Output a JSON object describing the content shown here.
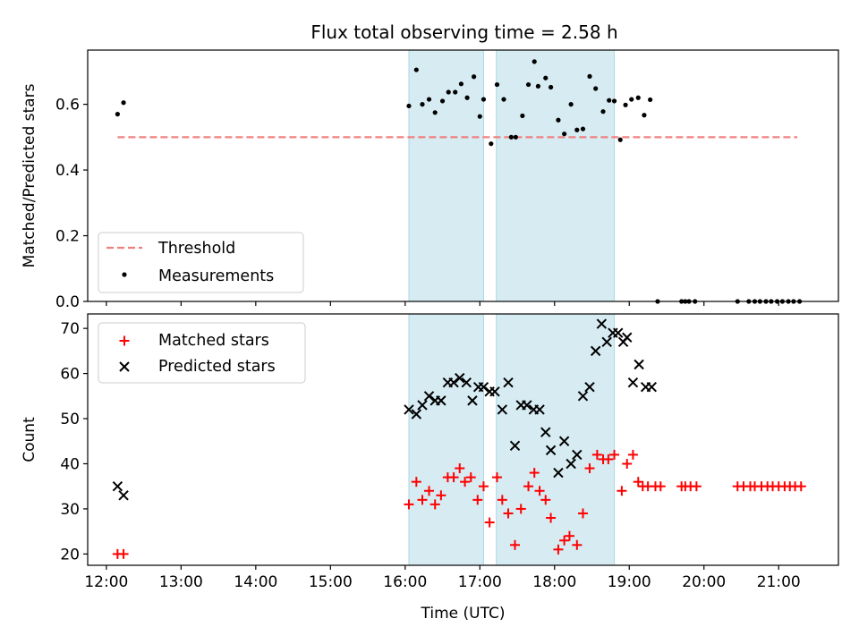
{
  "chart_data": [
    {
      "panel": "top",
      "type": "scatter",
      "title": "Flux total observing time = 2.58 h",
      "xlabel": "",
      "ylabel": "Matched/Predicted stars",
      "xlim": [
        11.75,
        21.8
      ],
      "ylim": [
        0,
        0.765
      ],
      "yticks": [
        0.0,
        0.2,
        0.4,
        0.6
      ],
      "ytick_labels": [
        "0.0",
        "0.2",
        "0.4",
        "0.6"
      ],
      "legend": "bottom-left",
      "shaded_regions": [
        [
          16.05,
          17.05
        ],
        [
          17.22,
          18.8
        ]
      ],
      "threshold": {
        "name": "Threshold",
        "value": 0.5,
        "x_range": [
          12.15,
          21.25
        ],
        "color": "#f08080",
        "style": "dashed"
      },
      "series": [
        {
          "name": "Measurements",
          "color": "#000000",
          "marker": "dot",
          "x": [
            12.15,
            12.23,
            16.05,
            16.15,
            16.23,
            16.32,
            16.4,
            16.5,
            16.58,
            16.67,
            16.75,
            16.83,
            16.92,
            17.0,
            17.05,
            17.15,
            17.23,
            17.32,
            17.42,
            17.48,
            17.57,
            17.65,
            17.73,
            17.78,
            17.88,
            17.95,
            18.05,
            18.13,
            18.22,
            18.3,
            18.38,
            18.47,
            18.55,
            18.65,
            18.73,
            18.8,
            18.88,
            18.95,
            19.03,
            19.12,
            19.2,
            19.28,
            19.38,
            19.7,
            19.75,
            19.8,
            19.88,
            20.45,
            20.6,
            20.68,
            20.75,
            20.83,
            20.9,
            20.98,
            21.05,
            21.13,
            21.2,
            21.28
          ],
          "y": [
            0.57,
            0.605,
            0.595,
            0.705,
            0.6,
            0.615,
            0.575,
            0.61,
            0.637,
            0.637,
            0.662,
            0.62,
            0.684,
            0.563,
            0.615,
            0.48,
            0.66,
            0.615,
            0.5,
            0.5,
            0.565,
            0.66,
            0.73,
            0.655,
            0.68,
            0.652,
            0.552,
            0.51,
            0.6,
            0.522,
            0.525,
            0.685,
            0.648,
            0.578,
            0.612,
            0.61,
            0.492,
            0.598,
            0.615,
            0.62,
            0.567,
            0.614,
            0.0,
            0.0,
            0.0,
            0.0,
            0.0,
            0.0,
            0.0,
            0.0,
            0.0,
            0.0,
            0.0,
            0.0,
            0.0,
            0.0,
            0.0,
            0.0
          ]
        }
      ]
    },
    {
      "panel": "bottom",
      "type": "scatter",
      "title": "",
      "xlabel": "Time (UTC)",
      "ylabel": "Count",
      "xlim": [
        11.75,
        21.8
      ],
      "ylim": [
        17.5,
        73.2
      ],
      "xticks": [
        12,
        13,
        14,
        15,
        16,
        17,
        18,
        19,
        20,
        21
      ],
      "xtick_labels": [
        "12:00",
        "13:00",
        "14:00",
        "15:00",
        "16:00",
        "17:00",
        "18:00",
        "19:00",
        "20:00",
        "21:00"
      ],
      "yticks": [
        20,
        30,
        40,
        50,
        60,
        70
      ],
      "ytick_labels": [
        "20",
        "30",
        "40",
        "50",
        "60",
        "70"
      ],
      "legend": "top-left",
      "shaded_regions": [
        [
          16.05,
          17.05
        ],
        [
          17.22,
          18.8
        ]
      ],
      "series": [
        {
          "name": "Matched stars",
          "color": "#ff0000",
          "marker": "plus",
          "x": [
            12.15,
            12.23,
            16.05,
            16.15,
            16.23,
            16.32,
            16.4,
            16.48,
            16.57,
            16.65,
            16.73,
            16.8,
            16.88,
            16.97,
            17.05,
            17.13,
            17.23,
            17.3,
            17.38,
            17.47,
            17.55,
            17.65,
            17.73,
            17.8,
            17.88,
            17.95,
            18.05,
            18.13,
            18.2,
            18.3,
            18.38,
            18.47,
            18.57,
            18.65,
            18.72,
            18.8,
            18.9,
            18.97,
            19.05,
            19.12,
            19.18,
            19.25,
            19.35,
            19.42,
            19.7,
            19.75,
            19.82,
            19.9,
            20.45,
            20.53,
            20.62,
            20.68,
            20.77,
            20.85,
            20.92,
            21.0,
            21.08,
            21.15,
            21.22,
            21.3
          ],
          "y": [
            20,
            20,
            31,
            36,
            32,
            34,
            31,
            33,
            37,
            37,
            39,
            36,
            37,
            32,
            35,
            27,
            37,
            32,
            29,
            22,
            30,
            35,
            38,
            34,
            32,
            28,
            21,
            23,
            24,
            22,
            29,
            39,
            42,
            41,
            41,
            42,
            34,
            40,
            42,
            36,
            35,
            35,
            35,
            35,
            35,
            35,
            35,
            35,
            35,
            35,
            35,
            35,
            35,
            35,
            35,
            35,
            35,
            35,
            35,
            35
          ]
        },
        {
          "name": "Predicted stars",
          "color": "#000000",
          "marker": "x",
          "x": [
            12.15,
            12.23,
            16.05,
            16.15,
            16.23,
            16.32,
            16.4,
            16.48,
            16.57,
            16.65,
            16.73,
            16.82,
            16.9,
            16.98,
            17.05,
            17.13,
            17.2,
            17.3,
            17.38,
            17.47,
            17.55,
            17.63,
            17.72,
            17.8,
            17.88,
            17.95,
            18.05,
            18.13,
            18.22,
            18.3,
            18.38,
            18.47,
            18.55,
            18.63,
            18.7,
            18.78,
            18.85,
            18.92,
            18.97,
            19.05,
            19.13,
            19.22,
            19.3
          ],
          "y": [
            35,
            33,
            52,
            51,
            53,
            55,
            54,
            54,
            58,
            58,
            59,
            58,
            54,
            57,
            57,
            56,
            56,
            52,
            58,
            44,
            53,
            53,
            52,
            52,
            47,
            43,
            38,
            45,
            40,
            42,
            55,
            57,
            65,
            71,
            67,
            69,
            69,
            67,
            68,
            58,
            62,
            57,
            57
          ]
        }
      ]
    }
  ]
}
